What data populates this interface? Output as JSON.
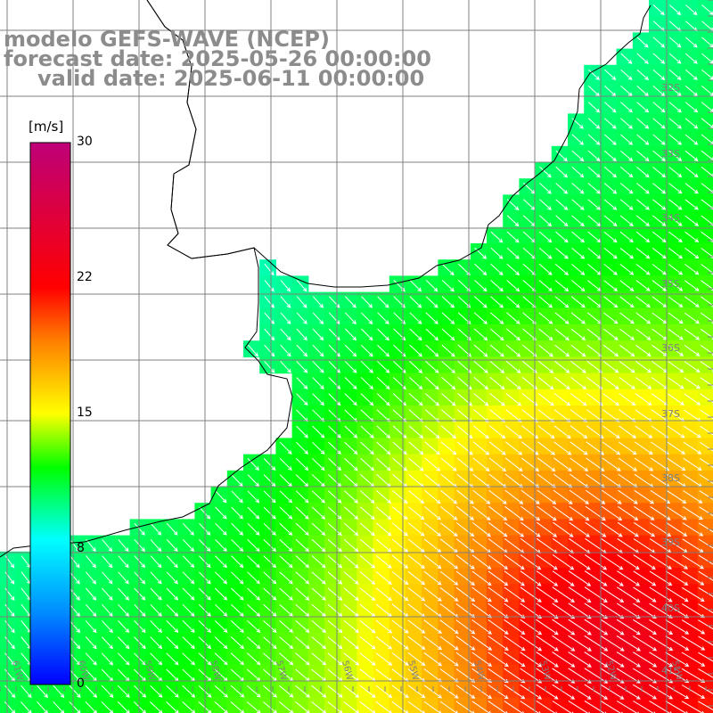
{
  "title": {
    "line1": "modelo GEFS-WAVE (NCEP)",
    "line2": "forecast date: 2025-05-26 00:00:00",
    "line3": "valid date: 2025-06-11 00:00:00"
  },
  "colorbar": {
    "unit": "[m/s]",
    "ticks": [
      "30",
      "22",
      "15",
      "8",
      "0"
    ],
    "colors": [
      "#0000ff",
      "#0090ff",
      "#00ffff",
      "#00ff00",
      "#ffff00",
      "#ff8000",
      "#ff0000",
      "#c00070"
    ]
  },
  "lat_labels": [
    "32S",
    "33S",
    "34S",
    "35S",
    "36S",
    "37S",
    "38S",
    "39S",
    "40S",
    "41S"
  ],
  "lon_labels": [
    "61W",
    "60W",
    "59W",
    "58W",
    "57W",
    "56W",
    "55W",
    "54W",
    "53W",
    "52W",
    "51W"
  ],
  "colors": {
    "grid": "#808080",
    "coast": "#000000",
    "arrow": "#ffffff",
    "title": "#8c8c8c"
  },
  "wind_field": {
    "unit": "m/s",
    "direction": "from north-west toward south-east, stronger offshore to the south-east"
  }
}
